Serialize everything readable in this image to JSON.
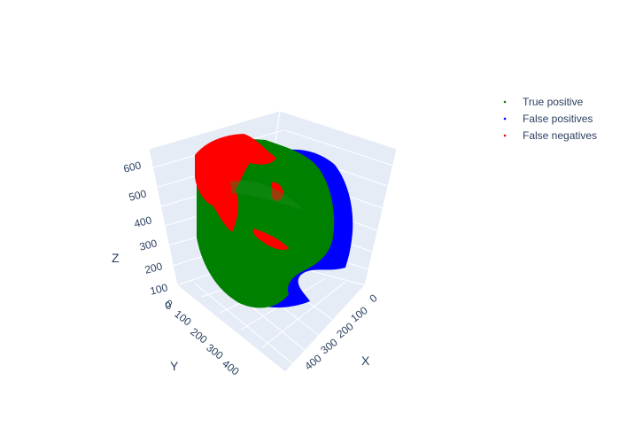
{
  "chart_data": {
    "type": "scatter3d",
    "axes": {
      "x": {
        "label": "X",
        "ticks": [
          "0",
          "100",
          "200",
          "300",
          "400"
        ]
      },
      "y": {
        "label": "Y",
        "ticks": [
          "0",
          "100",
          "200",
          "300",
          "400"
        ]
      },
      "z": {
        "label": "Z",
        "ticks": [
          "0",
          "100",
          "200",
          "300",
          "400",
          "500",
          "600"
        ]
      }
    },
    "legend_position": "top-right",
    "series": [
      {
        "name": "True positive",
        "color": "#008000"
      },
      {
        "name": "False positives",
        "color": "#0000ff"
      },
      {
        "name": "False negatives",
        "color": "#ff0000"
      }
    ]
  }
}
